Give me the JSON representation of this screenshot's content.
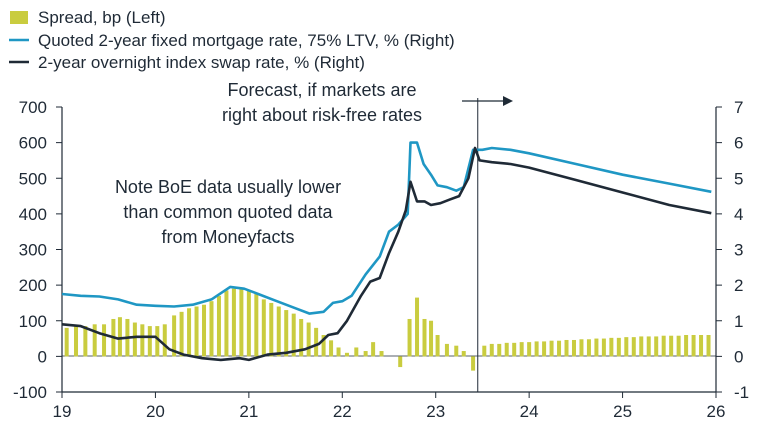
{
  "chart_data": {
    "type": "bar+line",
    "title": "",
    "legend": [
      {
        "key": "spread",
        "label": "Spread, bp (Left)",
        "swatch": "bar"
      },
      {
        "key": "mortgage",
        "label": "Quoted 2-year fixed mortgage rate, 75% LTV, % (Right)",
        "swatch": "line"
      },
      {
        "key": "ois",
        "label": "2-year overnight index swap rate, % (Right)",
        "swatch": "line"
      }
    ],
    "legend_position": "top-left",
    "x_axis": {
      "range": [
        2019.0,
        2026.0
      ],
      "ticks": [
        2019,
        2020,
        2021,
        2022,
        2023,
        2024,
        2025,
        2026
      ],
      "tick_labels": [
        "19",
        "20",
        "21",
        "22",
        "23",
        "24",
        "25",
        "26"
      ]
    },
    "y_left": {
      "range": [
        -100,
        700
      ],
      "ticks": [
        -100,
        0,
        100,
        200,
        300,
        400,
        500,
        600,
        700
      ],
      "tick_labels": [
        "-100",
        "0",
        "100",
        "200",
        "300",
        "400",
        "500",
        "600",
        "700"
      ]
    },
    "y_right": {
      "range": [
        -1,
        7
      ],
      "ticks": [
        -1,
        0,
        1,
        2,
        3,
        4,
        5,
        6,
        7
      ],
      "tick_labels": [
        "-1",
        "0",
        "1",
        "2",
        "3",
        "4",
        "5",
        "6",
        "7"
      ]
    },
    "forecast_start": 2023.45,
    "annotations": {
      "forecast_line1": "Forecast, if markets are",
      "forecast_line2": "right about risk-free rates",
      "note_line1": "Note BoE data usually lower",
      "note_line2": "than common quoted data",
      "note_line3": "from Moneyfacts"
    },
    "series": [
      {
        "name": "Spread, bp (Left)",
        "key": "spread",
        "type": "bar",
        "axis": "left",
        "color": "#c9cc3f",
        "points": [
          [
            2019.05,
            80
          ],
          [
            2019.15,
            85
          ],
          [
            2019.25,
            85
          ],
          [
            2019.35,
            90
          ],
          [
            2019.45,
            90
          ],
          [
            2019.55,
            105
          ],
          [
            2019.62,
            110
          ],
          [
            2019.7,
            105
          ],
          [
            2019.78,
            95
          ],
          [
            2019.86,
            90
          ],
          [
            2019.94,
            85
          ],
          [
            2020.02,
            85
          ],
          [
            2020.1,
            90
          ],
          [
            2020.2,
            115
          ],
          [
            2020.28,
            125
          ],
          [
            2020.36,
            135
          ],
          [
            2020.44,
            140
          ],
          [
            2020.52,
            145
          ],
          [
            2020.6,
            155
          ],
          [
            2020.68,
            170
          ],
          [
            2020.76,
            185
          ],
          [
            2020.84,
            190
          ],
          [
            2020.92,
            190
          ],
          [
            2021.0,
            185
          ],
          [
            2021.08,
            175
          ],
          [
            2021.16,
            160
          ],
          [
            2021.24,
            150
          ],
          [
            2021.32,
            140
          ],
          [
            2021.4,
            130
          ],
          [
            2021.48,
            120
          ],
          [
            2021.56,
            105
          ],
          [
            2021.64,
            95
          ],
          [
            2021.72,
            80
          ],
          [
            2021.8,
            60
          ],
          [
            2021.88,
            45
          ],
          [
            2021.96,
            25
          ],
          [
            2022.05,
            10
          ],
          [
            2022.15,
            25
          ],
          [
            2022.25,
            15
          ],
          [
            2022.33,
            40
          ],
          [
            2022.42,
            15
          ],
          [
            2022.62,
            -30
          ],
          [
            2022.72,
            105
          ],
          [
            2022.8,
            165
          ],
          [
            2022.88,
            105
          ],
          [
            2022.95,
            100
          ],
          [
            2023.02,
            60
          ],
          [
            2023.12,
            35
          ],
          [
            2023.22,
            30
          ],
          [
            2023.3,
            15
          ],
          [
            2023.4,
            -40
          ],
          [
            2023.52,
            30
          ],
          [
            2023.6,
            35
          ],
          [
            2023.68,
            35
          ],
          [
            2023.76,
            38
          ],
          [
            2023.84,
            38
          ],
          [
            2023.92,
            40
          ],
          [
            2024.0,
            40
          ],
          [
            2024.08,
            42
          ],
          [
            2024.16,
            42
          ],
          [
            2024.24,
            44
          ],
          [
            2024.32,
            44
          ],
          [
            2024.4,
            46
          ],
          [
            2024.48,
            46
          ],
          [
            2024.56,
            48
          ],
          [
            2024.64,
            48
          ],
          [
            2024.72,
            50
          ],
          [
            2024.8,
            50
          ],
          [
            2024.88,
            52
          ],
          [
            2024.96,
            52
          ],
          [
            2025.04,
            54
          ],
          [
            2025.12,
            54
          ],
          [
            2025.2,
            56
          ],
          [
            2025.28,
            56
          ],
          [
            2025.36,
            56
          ],
          [
            2025.44,
            58
          ],
          [
            2025.52,
            58
          ],
          [
            2025.6,
            58
          ],
          [
            2025.68,
            60
          ],
          [
            2025.76,
            60
          ],
          [
            2025.84,
            60
          ],
          [
            2025.92,
            60
          ]
        ]
      },
      {
        "name": "Quoted 2-year fixed mortgage rate, 75% LTV, % (Right)",
        "key": "mortgage",
        "type": "line",
        "axis": "right",
        "color": "#1f97c4",
        "points": [
          [
            2019.0,
            1.75
          ],
          [
            2019.2,
            1.7
          ],
          [
            2019.4,
            1.68
          ],
          [
            2019.6,
            1.6
          ],
          [
            2019.8,
            1.45
          ],
          [
            2020.0,
            1.42
          ],
          [
            2020.2,
            1.4
          ],
          [
            2020.4,
            1.45
          ],
          [
            2020.6,
            1.6
          ],
          [
            2020.8,
            1.95
          ],
          [
            2020.95,
            1.9
          ],
          [
            2021.1,
            1.75
          ],
          [
            2021.3,
            1.55
          ],
          [
            2021.5,
            1.35
          ],
          [
            2021.65,
            1.2
          ],
          [
            2021.8,
            1.25
          ],
          [
            2021.9,
            1.5
          ],
          [
            2022.0,
            1.55
          ],
          [
            2022.1,
            1.7
          ],
          [
            2022.25,
            2.3
          ],
          [
            2022.4,
            2.8
          ],
          [
            2022.5,
            3.5
          ],
          [
            2022.6,
            3.7
          ],
          [
            2022.7,
            4.0
          ],
          [
            2022.73,
            6.0
          ],
          [
            2022.8,
            6.0
          ],
          [
            2022.87,
            5.4
          ],
          [
            2022.95,
            5.1
          ],
          [
            2023.02,
            4.8
          ],
          [
            2023.12,
            4.75
          ],
          [
            2023.22,
            4.65
          ],
          [
            2023.3,
            4.75
          ],
          [
            2023.4,
            5.8
          ],
          [
            2023.5,
            5.8
          ],
          [
            2023.6,
            5.85
          ],
          [
            2023.8,
            5.8
          ],
          [
            2024.0,
            5.7
          ],
          [
            2024.5,
            5.4
          ],
          [
            2025.0,
            5.1
          ],
          [
            2025.5,
            4.85
          ],
          [
            2025.95,
            4.62
          ]
        ]
      },
      {
        "name": "2-year overnight index swap rate, % (Right)",
        "key": "ois",
        "type": "line",
        "axis": "right",
        "color": "#1f2a36",
        "points": [
          [
            2019.0,
            0.9
          ],
          [
            2019.2,
            0.85
          ],
          [
            2019.4,
            0.65
          ],
          [
            2019.6,
            0.5
          ],
          [
            2019.8,
            0.55
          ],
          [
            2020.0,
            0.55
          ],
          [
            2020.15,
            0.2
          ],
          [
            2020.3,
            0.05
          ],
          [
            2020.5,
            -0.05
          ],
          [
            2020.7,
            -0.1
          ],
          [
            2020.9,
            -0.05
          ],
          [
            2021.0,
            -0.1
          ],
          [
            2021.2,
            0.05
          ],
          [
            2021.4,
            0.1
          ],
          [
            2021.6,
            0.2
          ],
          [
            2021.75,
            0.35
          ],
          [
            2021.85,
            0.6
          ],
          [
            2021.95,
            0.65
          ],
          [
            2022.05,
            1.0
          ],
          [
            2022.2,
            1.7
          ],
          [
            2022.3,
            2.1
          ],
          [
            2022.4,
            2.2
          ],
          [
            2022.5,
            2.9
          ],
          [
            2022.6,
            3.5
          ],
          [
            2022.68,
            4.1
          ],
          [
            2022.73,
            4.9
          ],
          [
            2022.8,
            4.35
          ],
          [
            2022.88,
            4.35
          ],
          [
            2022.95,
            4.25
          ],
          [
            2023.05,
            4.3
          ],
          [
            2023.15,
            4.4
          ],
          [
            2023.25,
            4.5
          ],
          [
            2023.35,
            5.0
          ],
          [
            2023.42,
            5.85
          ],
          [
            2023.47,
            5.5
          ],
          [
            2023.6,
            5.45
          ],
          [
            2023.8,
            5.4
          ],
          [
            2024.0,
            5.3
          ],
          [
            2024.5,
            4.95
          ],
          [
            2025.0,
            4.6
          ],
          [
            2025.5,
            4.25
          ],
          [
            2025.95,
            4.02
          ]
        ]
      }
    ]
  }
}
